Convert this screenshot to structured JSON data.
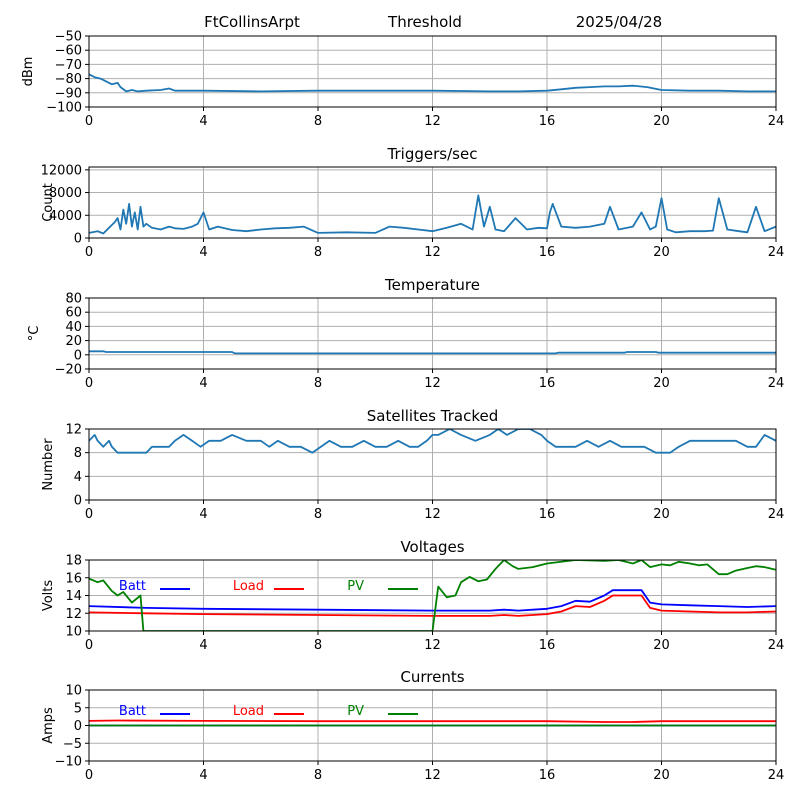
{
  "header": {
    "station": "FtCollinsArpt",
    "mode": "Threshold",
    "date": "2025/04/28"
  },
  "colors": {
    "series_default": "#1f77b4",
    "grid": "#b0b0b0",
    "batt": "#0000ff",
    "load": "#ff0000",
    "pv": "#008000"
  },
  "chart_data": [
    {
      "id": "signal",
      "type": "line",
      "title": "",
      "ylabel": "dBm",
      "xlim": [
        0,
        24
      ],
      "ylim": [
        -100,
        -50
      ],
      "xticks": [
        "0",
        "4",
        "8",
        "12",
        "16",
        "20",
        "24"
      ],
      "yticks": [
        "−50",
        "−60",
        "−70",
        "−80",
        "−90",
        "−100"
      ],
      "ytick_values": [
        -50,
        -60,
        -70,
        -80,
        -90,
        -100
      ],
      "grid": true,
      "series": [
        {
          "color": "#1f77b4",
          "x": [
            0,
            0.2,
            0.4,
            0.6,
            0.8,
            1.0,
            1.1,
            1.3,
            1.5,
            1.7,
            2.0,
            2.5,
            2.8,
            3.0,
            4,
            6,
            8,
            10,
            12,
            14,
            15,
            16,
            16.5,
            17,
            17.5,
            18,
            18.5,
            19,
            19.5,
            20,
            21,
            22,
            23,
            24
          ],
          "y": [
            -77,
            -79,
            -80,
            -82,
            -84,
            -83,
            -86,
            -89,
            -88,
            -89,
            -88.5,
            -88,
            -87,
            -88.5,
            -88.5,
            -89,
            -88.5,
            -88.5,
            -88.5,
            -89,
            -89,
            -88.5,
            -87.5,
            -86.5,
            -86,
            -85.5,
            -85.5,
            -85,
            -86,
            -88,
            -88.5,
            -88.5,
            -89,
            -89
          ]
        }
      ]
    },
    {
      "id": "triggers",
      "type": "line",
      "title": "Triggers/sec",
      "ylabel": "Count",
      "xlim": [
        0,
        24
      ],
      "ylim": [
        0,
        12500
      ],
      "xticks": [
        "0",
        "4",
        "8",
        "12",
        "16",
        "20",
        "24"
      ],
      "yticks": [
        "0",
        "4000",
        "8000",
        "12000"
      ],
      "ytick_values": [
        0,
        4000,
        8000,
        12000
      ],
      "grid": true,
      "series": [
        {
          "color": "#1f77b4",
          "x": [
            0,
            0.3,
            0.5,
            0.7,
            0.9,
            1.0,
            1.1,
            1.2,
            1.3,
            1.4,
            1.5,
            1.6,
            1.7,
            1.8,
            1.9,
            2.0,
            2.2,
            2.5,
            2.8,
            3.0,
            3.3,
            3.6,
            3.8,
            4.0,
            4.2,
            4.5,
            5.0,
            5.5,
            6.0,
            6.5,
            7.0,
            7.5,
            8.0,
            9.0,
            10.0,
            10.5,
            11.0,
            11.5,
            12.0,
            12.5,
            13.0,
            13.4,
            13.6,
            13.8,
            14.0,
            14.2,
            14.5,
            14.9,
            15.3,
            15.7,
            16.0,
            16.1,
            16.2,
            16.5,
            17.0,
            17.5,
            18.0,
            18.2,
            18.5,
            19.0,
            19.3,
            19.6,
            19.8,
            20.0,
            20.2,
            20.5,
            21.0,
            21.5,
            21.8,
            22.0,
            22.3,
            22.7,
            23.0,
            23.3,
            23.6,
            24.0
          ],
          "y": [
            900,
            1200,
            800,
            1800,
            2800,
            3500,
            1500,
            5000,
            2500,
            6000,
            2000,
            4500,
            1500,
            5500,
            2000,
            2500,
            1800,
            1500,
            2000,
            1700,
            1600,
            2000,
            2500,
            4500,
            1500,
            2000,
            1400,
            1200,
            1500,
            1700,
            1800,
            2000,
            900,
            1000,
            900,
            2000,
            1800,
            1500,
            1200,
            1800,
            2500,
            1500,
            7500,
            2000,
            5500,
            1500,
            1200,
            3500,
            1500,
            1800,
            1700,
            4500,
            6000,
            2000,
            1800,
            2000,
            2500,
            5500,
            1500,
            2000,
            4500,
            1500,
            2000,
            7000,
            1500,
            1000,
            1200,
            1200,
            1300,
            7000,
            1500,
            1200,
            1000,
            5500,
            1200,
            2000
          ]
        }
      ]
    },
    {
      "id": "temperature",
      "type": "line",
      "title": "Temperature",
      "ylabel": "°C",
      "xlim": [
        0,
        24
      ],
      "ylim": [
        -20,
        80
      ],
      "xticks": [
        "0",
        "4",
        "8",
        "12",
        "16",
        "20",
        "24"
      ],
      "yticks": [
        "−20",
        "0",
        "20",
        "40",
        "60",
        "80"
      ],
      "ytick_values": [
        -20,
        0,
        20,
        40,
        60,
        80
      ],
      "grid": true,
      "series": [
        {
          "color": "#1f77b4",
          "x": [
            0,
            0.5,
            0.6,
            5.0,
            5.1,
            12,
            16.3,
            16.4,
            18.7,
            18.8,
            19.8,
            19.9,
            24
          ],
          "y": [
            5,
            5,
            4,
            4,
            2,
            2,
            2,
            3,
            3,
            4,
            4,
            3,
            3
          ]
        }
      ]
    },
    {
      "id": "satellites",
      "type": "line",
      "title": "Satellites Tracked",
      "ylabel": "Number",
      "xlim": [
        0,
        24
      ],
      "ylim": [
        0,
        12
      ],
      "xticks": [
        "0",
        "4",
        "8",
        "12",
        "16",
        "20",
        "24"
      ],
      "yticks": [
        "0",
        "4",
        "8",
        "12"
      ],
      "ytick_values": [
        0,
        4,
        8,
        12
      ],
      "grid": true,
      "series": [
        {
          "color": "#1f77b4",
          "x": [
            0,
            0.2,
            0.3,
            0.5,
            0.7,
            0.8,
            1.0,
            1.5,
            2.0,
            2.2,
            2.5,
            2.8,
            3.0,
            3.3,
            3.6,
            3.9,
            4.2,
            4.6,
            5.0,
            5.5,
            6.0,
            6.3,
            6.6,
            7.0,
            7.4,
            7.8,
            8.1,
            8.4,
            8.8,
            9.2,
            9.6,
            10.0,
            10.4,
            10.8,
            11.2,
            11.5,
            11.8,
            12.0,
            12.2,
            12.6,
            13.0,
            13.5,
            14.0,
            14.3,
            14.6,
            15.0,
            15.4,
            15.8,
            16.0,
            16.3,
            16.6,
            17.0,
            17.4,
            17.8,
            18.2,
            18.6,
            19.0,
            19.4,
            19.8,
            20.0,
            20.3,
            20.6,
            21.0,
            21.4,
            21.8,
            22.2,
            22.6,
            23.0,
            23.3,
            23.6,
            24.0
          ],
          "y": [
            10,
            11,
            10,
            9,
            10,
            9,
            8,
            8,
            8,
            9,
            9,
            9,
            10,
            11,
            10,
            9,
            10,
            10,
            11,
            10,
            10,
            9,
            10,
            9,
            9,
            8,
            9,
            10,
            9,
            9,
            10,
            9,
            9,
            10,
            9,
            9,
            10,
            11,
            11,
            12,
            11,
            10,
            11,
            12,
            11,
            12,
            12,
            11,
            10,
            9,
            9,
            9,
            10,
            9,
            10,
            9,
            9,
            9,
            8,
            8,
            8,
            9,
            10,
            10,
            10,
            10,
            10,
            9,
            9,
            11,
            10
          ]
        }
      ]
    },
    {
      "id": "voltages",
      "type": "line",
      "title": "Voltages",
      "ylabel": "Volts",
      "xlim": [
        0,
        24
      ],
      "ylim": [
        10,
        18
      ],
      "xticks": [
        "0",
        "4",
        "8",
        "12",
        "16",
        "20",
        "24"
      ],
      "yticks": [
        "10",
        "12",
        "14",
        "16",
        "18"
      ],
      "ytick_values": [
        10,
        12,
        14,
        16,
        18
      ],
      "grid": true,
      "legend": "upper-left",
      "series": [
        {
          "name": "Batt",
          "color": "#0000ff",
          "x": [
            0,
            2,
            4,
            8,
            12,
            14,
            14.5,
            15,
            15.5,
            16,
            16.5,
            17,
            17.5,
            18,
            18.3,
            19.0,
            19.3,
            19.6,
            20,
            21,
            22,
            23,
            24
          ],
          "y": [
            12.8,
            12.6,
            12.5,
            12.4,
            12.3,
            12.3,
            12.4,
            12.3,
            12.4,
            12.5,
            12.8,
            13.4,
            13.3,
            14.0,
            14.6,
            14.6,
            14.6,
            13.2,
            13.0,
            12.9,
            12.8,
            12.7,
            12.8
          ]
        },
        {
          "name": "Load",
          "color": "#ff0000",
          "x": [
            0,
            2,
            4,
            8,
            12,
            14,
            14.5,
            15,
            15.5,
            16,
            16.5,
            17,
            17.5,
            18,
            18.3,
            19.0,
            19.3,
            19.6,
            20,
            21,
            22,
            23,
            24
          ],
          "y": [
            12.1,
            12.0,
            11.9,
            11.8,
            11.7,
            11.7,
            11.8,
            11.7,
            11.8,
            11.9,
            12.2,
            12.8,
            12.7,
            13.4,
            14.0,
            14.0,
            14.0,
            12.6,
            12.3,
            12.2,
            12.1,
            12.1,
            12.2
          ]
        },
        {
          "name": "PV",
          "color": "#008000",
          "x": [
            0,
            0.3,
            0.5,
            0.8,
            1.0,
            1.2,
            1.5,
            1.8,
            1.9,
            12.0,
            12.2,
            12.5,
            12.8,
            13.0,
            13.3,
            13.6,
            13.9,
            14.2,
            14.5,
            14.8,
            15.0,
            15.5,
            16.0,
            17.0,
            18.0,
            18.5,
            19.0,
            19.3,
            19.6,
            20.0,
            20.3,
            20.6,
            21.0,
            21.3,
            21.6,
            22.0,
            22.3,
            22.6,
            23.0,
            23.3,
            23.6,
            24.0
          ],
          "y": [
            15.9,
            15.5,
            15.7,
            14.5,
            14.0,
            14.4,
            13.2,
            14.0,
            10,
            10,
            15.0,
            13.8,
            14.0,
            15.5,
            16.1,
            15.6,
            15.8,
            17.0,
            18,
            17.3,
            17.0,
            17.2,
            17.6,
            18.0,
            17.9,
            18.0,
            17.6,
            18.0,
            17.2,
            17.5,
            17.4,
            17.8,
            17.6,
            17.4,
            17.5,
            16.4,
            16.4,
            16.8,
            17.1,
            17.3,
            17.2,
            16.9
          ]
        }
      ]
    },
    {
      "id": "currents",
      "type": "line",
      "title": "Currents",
      "ylabel": "Amps",
      "xlim": [
        0,
        24
      ],
      "ylim": [
        -10,
        10
      ],
      "xticks": [
        "0",
        "4",
        "8",
        "12",
        "16",
        "20",
        "24"
      ],
      "yticks": [
        "−10",
        "−5",
        "0",
        "5",
        "10"
      ],
      "ytick_values": [
        -10,
        -5,
        0,
        5,
        10
      ],
      "grid": true,
      "legend": "upper-left",
      "series": [
        {
          "name": "Batt",
          "color": "#0000ff",
          "x": [
            0,
            24
          ],
          "y": [
            0,
            0
          ]
        },
        {
          "name": "Load",
          "color": "#ff0000",
          "x": [
            0,
            1,
            4,
            8,
            12,
            16,
            18,
            19,
            20,
            24
          ],
          "y": [
            1.3,
            1.4,
            1.3,
            1.2,
            1.2,
            1.2,
            1.0,
            1.0,
            1.2,
            1.2
          ]
        },
        {
          "name": "PV",
          "color": "#008000",
          "x": [
            0,
            24
          ],
          "y": [
            0,
            0
          ]
        }
      ]
    }
  ]
}
